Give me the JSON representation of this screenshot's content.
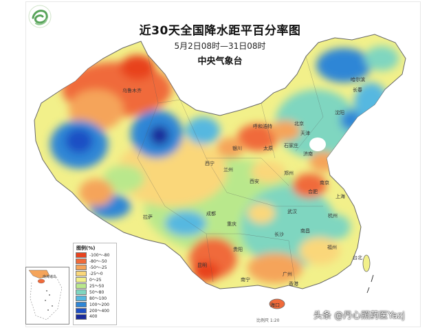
{
  "map": {
    "title": "近30天全国降水距平百分率图",
    "subtitle": "5月2日08时—31日08时",
    "agency": "中央气象台"
  },
  "legend": {
    "title": "图例(%)",
    "items": [
      {
        "label": "-100～-80",
        "color": "#e8431f"
      },
      {
        "label": "-80～-50",
        "color": "#f06a3a"
      },
      {
        "label": "-50～-25",
        "color": "#f5a45a"
      },
      {
        "label": "-25～0",
        "color": "#fad77a"
      },
      {
        "label": "0～25",
        "color": "#f2f08a"
      },
      {
        "label": "25～50",
        "color": "#b9e88c"
      },
      {
        "label": "50～80",
        "color": "#7fd6c0"
      },
      {
        "label": "80～100",
        "color": "#56b8e0"
      },
      {
        "label": "100～200",
        "color": "#2f86d6"
      },
      {
        "label": "200～400",
        "color": "#1d4fc4"
      },
      {
        "label": "400",
        "color": "#1a2b9a"
      }
    ]
  },
  "cities": [
    {
      "name": "乌鲁木齐"
    },
    {
      "name": "哈尔滨"
    },
    {
      "name": "长春"
    },
    {
      "name": "沈阳"
    },
    {
      "name": "呼和浩特"
    },
    {
      "name": "北京"
    },
    {
      "name": "天津"
    },
    {
      "name": "石家庄"
    },
    {
      "name": "太原"
    },
    {
      "name": "济南"
    },
    {
      "name": "银川"
    },
    {
      "name": "西宁"
    },
    {
      "name": "兰州"
    },
    {
      "name": "西安"
    },
    {
      "name": "郑州"
    },
    {
      "name": "南京"
    },
    {
      "name": "合肥"
    },
    {
      "name": "上海"
    },
    {
      "name": "拉萨"
    },
    {
      "name": "成都"
    },
    {
      "name": "重庆"
    },
    {
      "name": "武汉"
    },
    {
      "name": "杭州"
    },
    {
      "name": "长沙"
    },
    {
      "name": "南昌"
    },
    {
      "name": "贵阳"
    },
    {
      "name": "昆明"
    },
    {
      "name": "福州"
    },
    {
      "name": "台北"
    },
    {
      "name": "南宁"
    },
    {
      "name": "广州"
    },
    {
      "name": "香港"
    },
    {
      "name": "海口"
    }
  ],
  "inset": {
    "label": "南海诸岛"
  },
  "scale": {
    "label": "比例尺 1:20"
  },
  "watermark": {
    "text": "头条 @丹心照药医Yazj"
  }
}
